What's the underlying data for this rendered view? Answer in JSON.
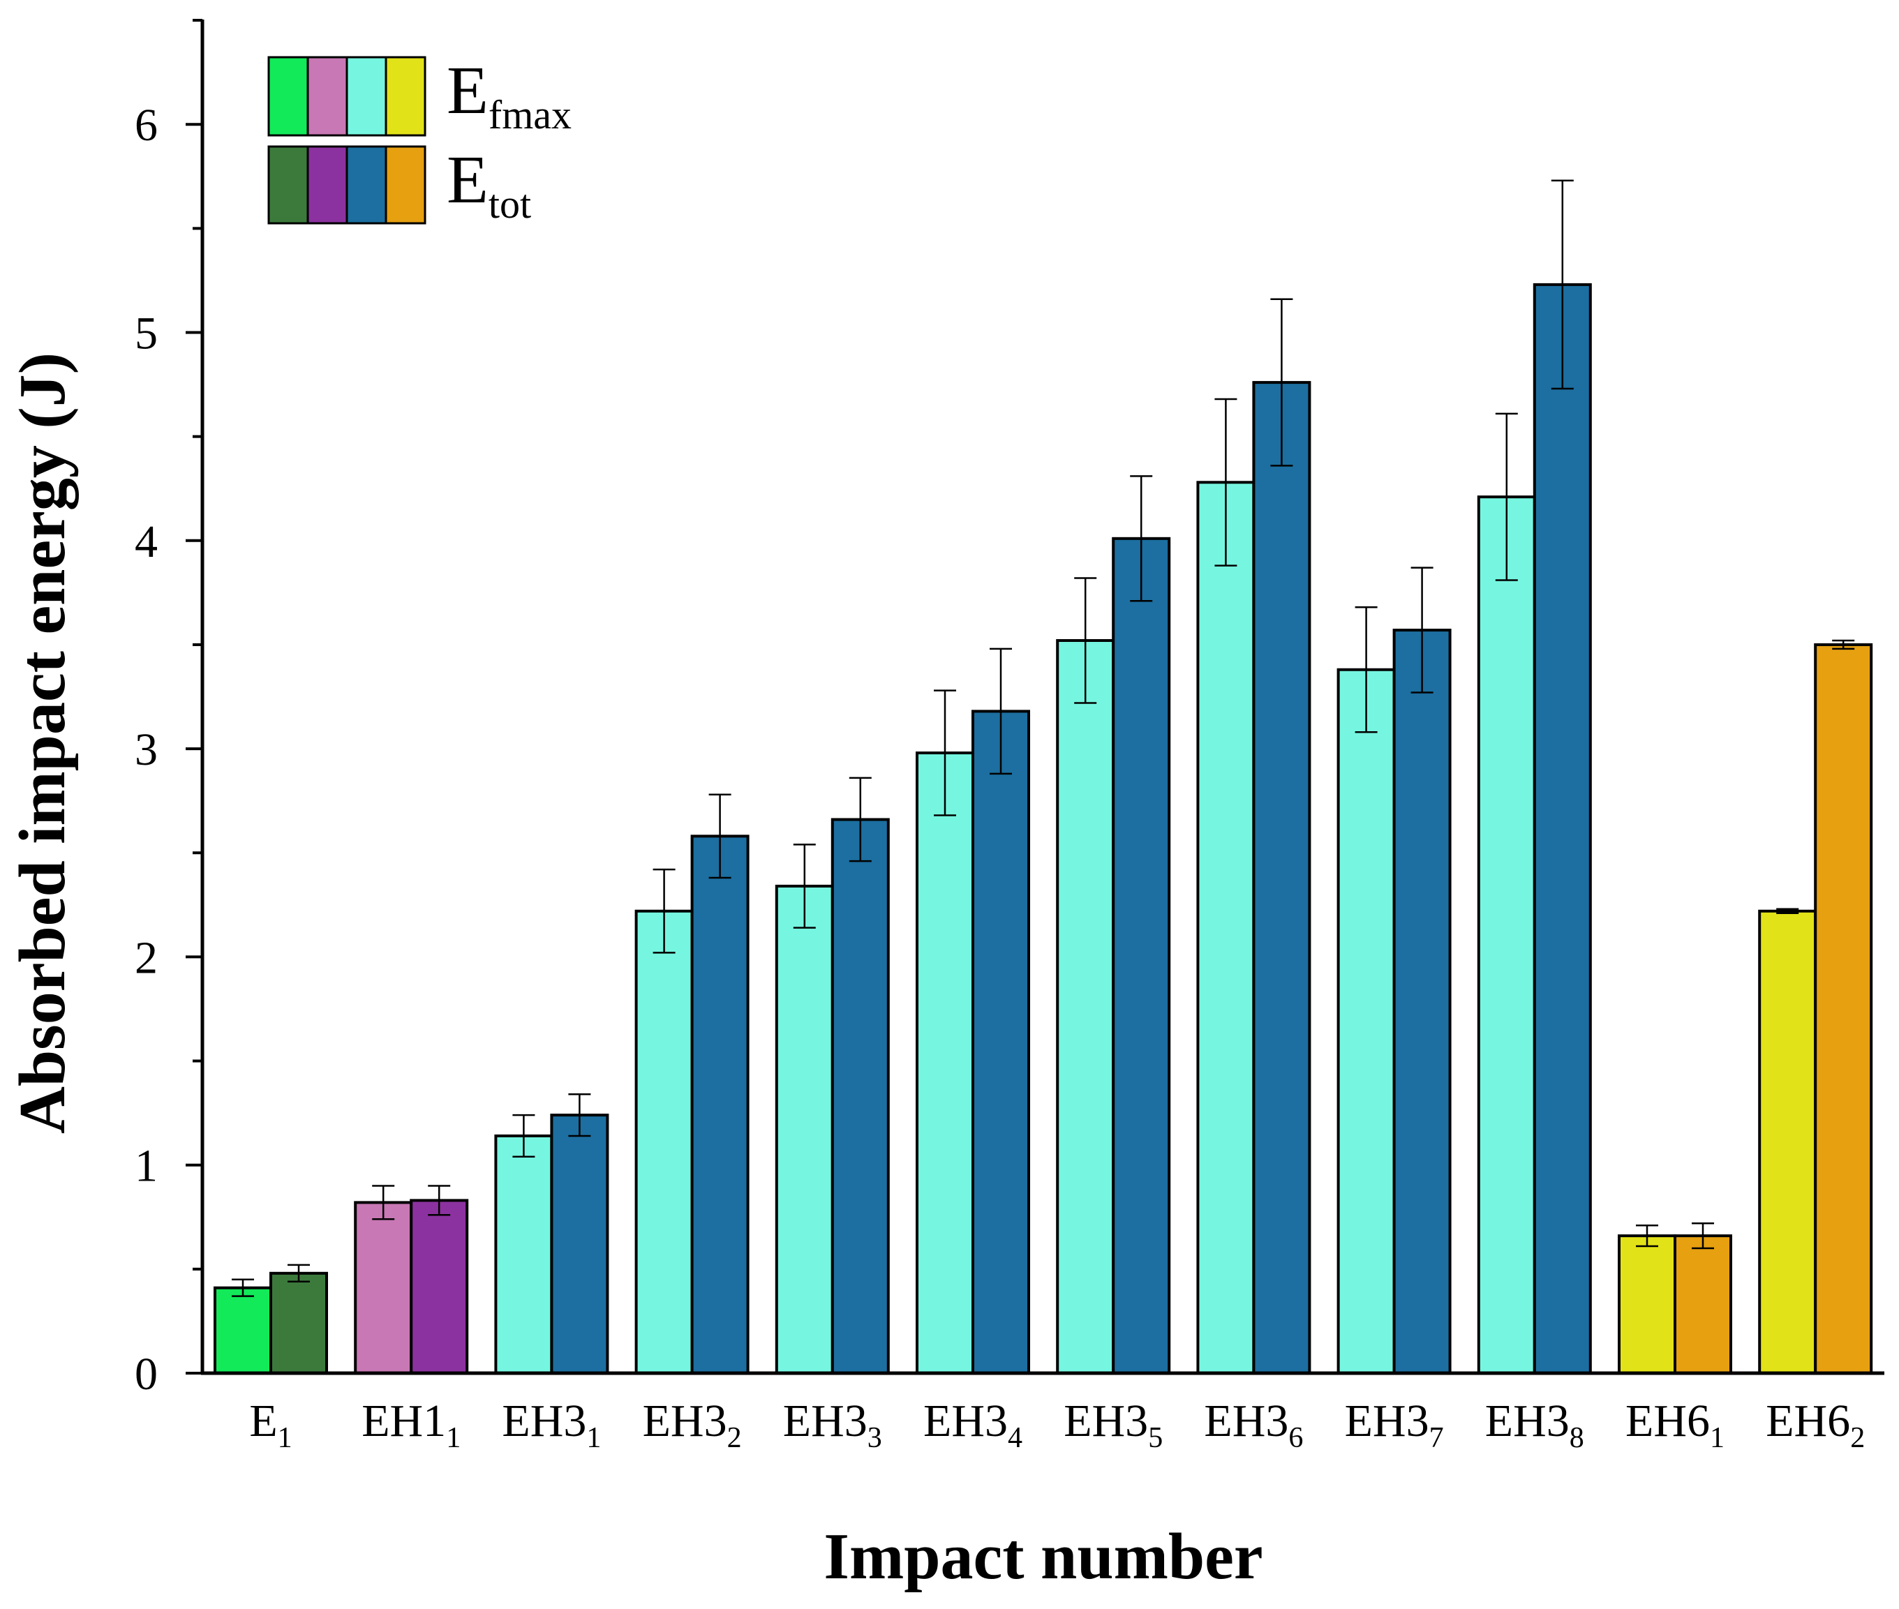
{
  "chart_data": {
    "type": "bar",
    "title": "",
    "xlabel": "Impact number",
    "ylabel": "Absorbed impact energy (J)",
    "ylim": [
      0,
      6.5
    ],
    "yticks": [
      "0",
      "1",
      "2",
      "3",
      "4",
      "5",
      "6"
    ],
    "categories": [
      {
        "base": "E",
        "sub": "1"
      },
      {
        "base": "EH1",
        "sub": "1"
      },
      {
        "base": "EH3",
        "sub": "1"
      },
      {
        "base": "EH3",
        "sub": "2"
      },
      {
        "base": "EH3",
        "sub": "3"
      },
      {
        "base": "EH3",
        "sub": "4"
      },
      {
        "base": "EH3",
        "sub": "5"
      },
      {
        "base": "EH3",
        "sub": "6"
      },
      {
        "base": "EH3",
        "sub": "7"
      },
      {
        "base": "EH3",
        "sub": "8"
      },
      {
        "base": "EH6",
        "sub": "1"
      },
      {
        "base": "EH6",
        "sub": "2"
      }
    ],
    "series": [
      {
        "name": "E_fmax",
        "label": {
          "base": "E",
          "sub": "fmax"
        },
        "values": [
          0.41,
          0.82,
          1.14,
          2.22,
          2.34,
          2.98,
          3.52,
          4.28,
          3.38,
          4.21,
          0.66,
          2.22
        ],
        "errors": [
          0.04,
          0.08,
          0.1,
          0.2,
          0.2,
          0.3,
          0.3,
          0.4,
          0.3,
          0.4,
          0.05,
          0.01
        ],
        "colors": [
          "#12ea5a",
          "#c878b4",
          "#76f6e0",
          "#76f6e0",
          "#76f6e0",
          "#76f6e0",
          "#76f6e0",
          "#76f6e0",
          "#76f6e0",
          "#76f6e0",
          "#e2e218",
          "#e2e218"
        ]
      },
      {
        "name": "E_tot",
        "label": {
          "base": "E",
          "sub": "tot"
        },
        "values": [
          0.48,
          0.83,
          1.24,
          2.58,
          2.66,
          3.18,
          4.01,
          4.76,
          3.57,
          5.23,
          0.66,
          3.5
        ],
        "errors": [
          0.04,
          0.07,
          0.1,
          0.2,
          0.2,
          0.3,
          0.3,
          0.4,
          0.3,
          0.5,
          0.06,
          0.02
        ],
        "colors": [
          "#3c7a3c",
          "#8c32a0",
          "#1c6fa0",
          "#1c6fa0",
          "#1c6fa0",
          "#1c6fa0",
          "#1c6fa0",
          "#1c6fa0",
          "#1c6fa0",
          "#1c6fa0",
          "#e6a010",
          "#e6a010"
        ]
      }
    ],
    "legend": {
      "position": "top-left",
      "groups": [
        "E1",
        "EH1",
        "EH3",
        "EH6"
      ]
    }
  }
}
